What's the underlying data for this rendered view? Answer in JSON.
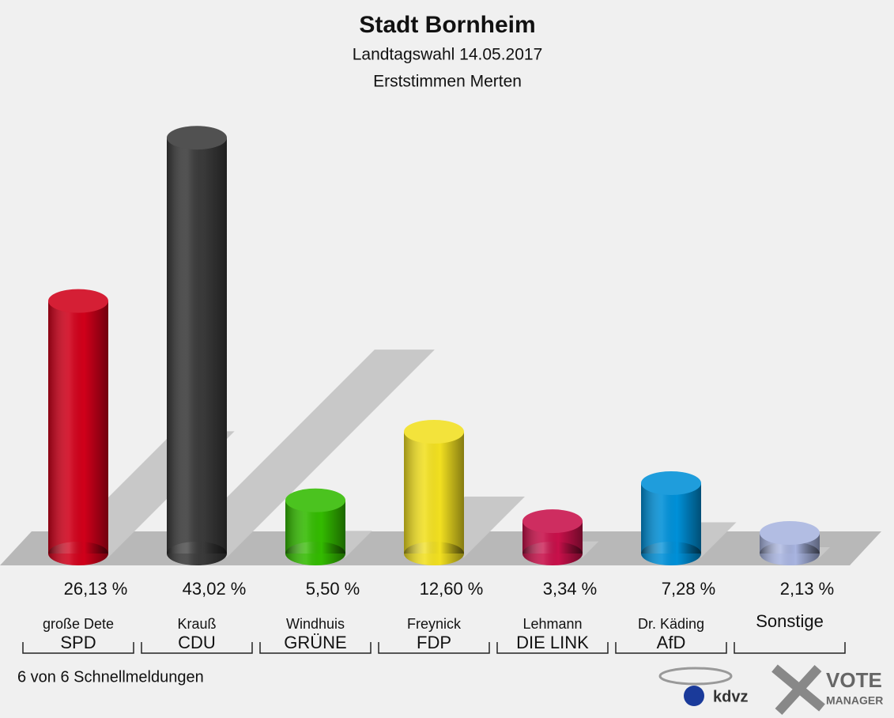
{
  "chart_data": {
    "type": "bar",
    "title": "Stadt Bornheim",
    "subtitle": "Landtagswahl 14.05.2017",
    "subtitle2": "Erststimmen Merten",
    "candidates": [
      "große Dete",
      "Krauß",
      "Windhuis",
      "Freynick",
      "Lehmann",
      "Dr. Käding",
      "Sonstige"
    ],
    "categories": [
      "SPD",
      "CDU",
      "GRÜNE",
      "FDP",
      "DIE LINK",
      "AfD",
      null
    ],
    "values": [
      26.13,
      43.02,
      5.5,
      12.6,
      3.34,
      7.28,
      2.13
    ],
    "value_labels": [
      "26,13 %",
      "43,02 %",
      "5,50 %",
      "12,60 %",
      "3,34 %",
      "7,28 %",
      "2,13 %"
    ],
    "colors": [
      "#d0001a",
      "#3a3a3a",
      "#33bb00",
      "#f2e020",
      "#c8104a",
      "#0090d8",
      "#a8b4e0"
    ],
    "ylim": [
      0,
      45
    ],
    "footer": "6 von 6 Schnellmeldungen",
    "logo_text": "kdvz",
    "logo_vote": "VOTE",
    "logo_manager": "MANAGER"
  }
}
